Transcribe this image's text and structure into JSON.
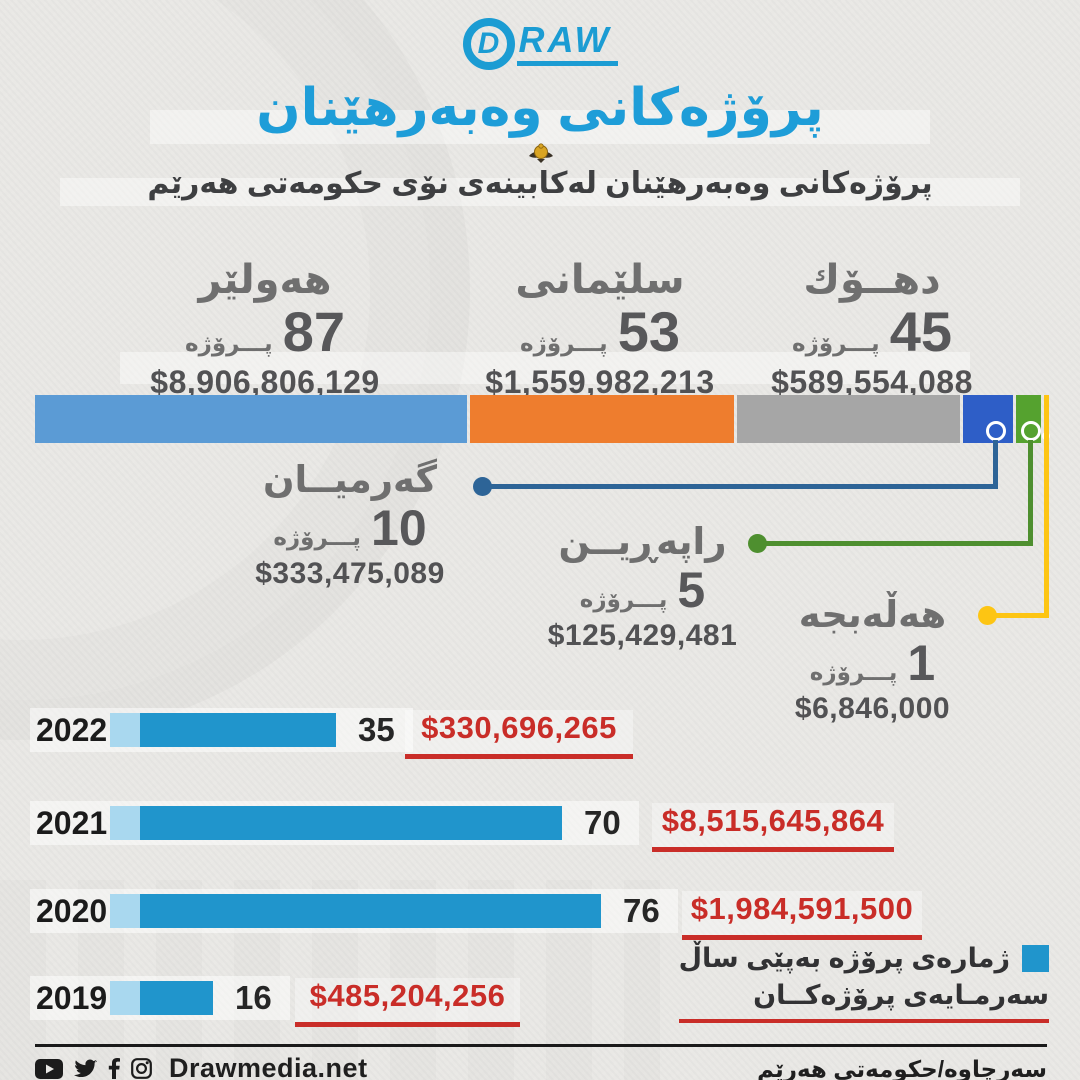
{
  "header": {
    "logo_d": "D",
    "logo_raw": "RAW",
    "title": "پرۆژەکانی وەبەرهێنان",
    "subtitle": "پرۆژەکانی وەبەرهێنان لەکابینەی نۆی حکومەتی هەرێم"
  },
  "labels": {
    "project_unit": "پـــرۆژە"
  },
  "regions": [
    {
      "name": "هەولێر",
      "projects": "87",
      "amount": "$8,906,806,129",
      "color": "#5b9bd5"
    },
    {
      "name": "سلێمانی",
      "projects": "53",
      "amount": "$1,559,982,213",
      "color": "#ee7d2e"
    },
    {
      "name": "دهــۆك",
      "projects": "45",
      "amount": "$589,554,088",
      "color": "#a6a6a6"
    },
    {
      "name": "گەرمیــان",
      "projects": "10",
      "amount": "$333,475,089",
      "color": "#2e5ec7"
    },
    {
      "name": "راپەڕیــن",
      "projects": "5",
      "amount": "$125,429,481",
      "color": "#55a22f"
    },
    {
      "name": "هەڵەبجە",
      "projects": "1",
      "amount": "$6,846,000",
      "color": "#ffc412"
    }
  ],
  "years": [
    {
      "year": "2022",
      "projects": "35",
      "amount": "$330,696,265"
    },
    {
      "year": "2021",
      "projects": "70",
      "amount": "$8,515,645,864"
    },
    {
      "year": "2020",
      "projects": "76",
      "amount": "$1,984,591,500"
    },
    {
      "year": "2019",
      "projects": "16",
      "amount": "$485,204,256"
    }
  ],
  "legend": {
    "projects_label": "ژمارەی پرۆژە بەپێی ساڵ",
    "capital_label": "سەرمـایەی پرۆژەکــان"
  },
  "footer": {
    "website": "Drawmedia.net",
    "source": "سەرچاوە/حکومەتی هەرێم"
  },
  "colors": {
    "brand_blue": "#1b9cd3",
    "title_blue": "#1e9dd8",
    "year_bar": "#2095cc",
    "year_bar_cap": "#a9d8ef",
    "red": "#c92d28",
    "text_gray": "#6f6f6f",
    "text_dark": "#3e3f41"
  },
  "chart_data": [
    {
      "type": "bar",
      "variant": "stacked-horizontal",
      "title": "پرۆژەکانی وەبەرهێنان لەکابینەی نۆی حکومەتی هەرێم",
      "categories": [
        "هەولێر",
        "سلێمانی",
        "دهــۆك",
        "گەرمیــان",
        "راپەڕیــن",
        "هەڵەبجە"
      ],
      "projects": [
        87,
        53,
        45,
        10,
        5,
        1
      ],
      "amounts_usd": [
        8906806129,
        1559982213,
        589554088,
        333475089,
        125429481,
        6846000
      ],
      "colors": [
        "#5b9bd5",
        "#ee7d2e",
        "#a6a6a6",
        "#2e5ec7",
        "#55a22f",
        "#ffc412"
      ],
      "legend_position": "none"
    },
    {
      "type": "bar",
      "variant": "horizontal",
      "categories": [
        "2022",
        "2021",
        "2020",
        "2019"
      ],
      "series": [
        {
          "name": "ژمارەی پرۆژە بەپێی ساڵ",
          "values": [
            35,
            70,
            76,
            16
          ]
        },
        {
          "name": "سەرمـایەی پرۆژەکــان",
          "values": [
            330696265,
            8515645864,
            1984591500,
            485204256
          ]
        }
      ],
      "xlabel": "",
      "ylabel": "",
      "grid": false,
      "legend_position": "bottom-right"
    }
  ]
}
